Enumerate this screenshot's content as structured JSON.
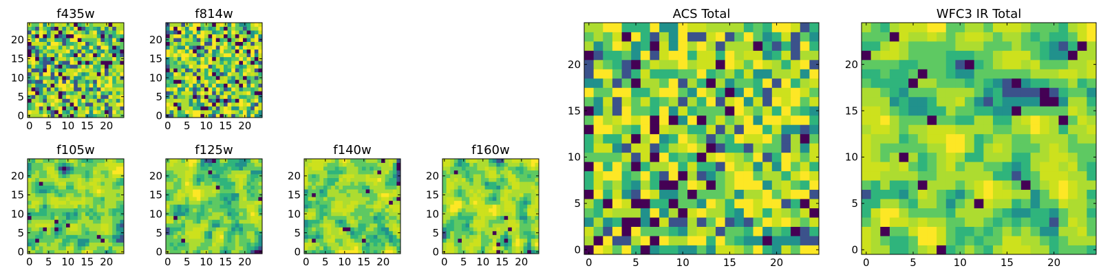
{
  "palette": [
    "#440154",
    "#3b528b",
    "#21918c",
    "#2fb47c",
    "#5ec962",
    "#addc30",
    "#cde11d",
    "#fde725"
  ],
  "chart_data": [
    {
      "type": "heatmap",
      "title": "f435w",
      "grid_size": 25,
      "xticks": [
        0,
        5,
        10,
        15,
        20
      ],
      "yticks": [
        0,
        5,
        10,
        15,
        20
      ],
      "texture": "fine-noise",
      "seed": 11
    },
    {
      "type": "heatmap",
      "title": "f814w",
      "grid_size": 25,
      "xticks": [
        0,
        5,
        10,
        15,
        20
      ],
      "yticks": [
        0,
        5,
        10,
        15,
        20
      ],
      "texture": "fine-noise",
      "seed": 23
    },
    {
      "type": "heatmap",
      "title": "f105w",
      "grid_size": 25,
      "xticks": [
        0,
        5,
        10,
        15,
        20
      ],
      "yticks": [
        0,
        5,
        10,
        15,
        20
      ],
      "texture": "smooth-noise",
      "seed": 37
    },
    {
      "type": "heatmap",
      "title": "f125w",
      "grid_size": 25,
      "xticks": [
        0,
        5,
        10,
        15,
        20
      ],
      "yticks": [
        0,
        5,
        10,
        15,
        20
      ],
      "texture": "smooth-noise",
      "seed": 41
    },
    {
      "type": "heatmap",
      "title": "f140w",
      "grid_size": 25,
      "xticks": [
        0,
        5,
        10,
        15,
        20
      ],
      "yticks": [
        0,
        5,
        10,
        15,
        20
      ],
      "texture": "smooth-noise",
      "seed": 53
    },
    {
      "type": "heatmap",
      "title": "f160w",
      "grid_size": 25,
      "xticks": [
        0,
        5,
        10,
        15,
        20
      ],
      "yticks": [
        0,
        5,
        10,
        15,
        20
      ],
      "texture": "smooth-noise",
      "seed": 67
    },
    {
      "type": "heatmap",
      "title": "ACS Total",
      "grid_size": 25,
      "xticks": [
        0,
        5,
        10,
        15,
        20
      ],
      "yticks": [
        0,
        5,
        10,
        15,
        20
      ],
      "texture": "fine-noise",
      "seed": 79
    },
    {
      "type": "heatmap",
      "title": "WFC3 IR Total",
      "grid_size": 25,
      "xticks": [
        0,
        5,
        10,
        15,
        20
      ],
      "yticks": [
        0,
        5,
        10,
        15,
        20
      ],
      "texture": "smooth-noise",
      "seed": 97
    }
  ]
}
